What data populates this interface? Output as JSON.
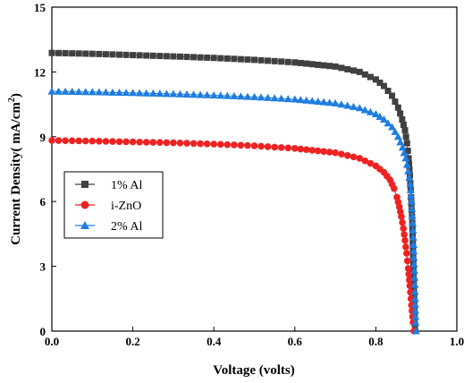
{
  "chart_data": {
    "type": "scatter",
    "xlabel": "Voltage (volts)",
    "ylabel_main": "Current Density( mA/cm",
    "ylabel_sup": "2",
    "ylabel_close": ")",
    "xlim": [
      0,
      1.0
    ],
    "ylim": [
      0,
      15
    ],
    "x_ticks": [
      0.0,
      0.2,
      0.4,
      0.6,
      0.8,
      1.0
    ],
    "x_tick_labels": [
      "0.0",
      "0.2",
      "0.4",
      "0.6",
      "0.8",
      "1.0"
    ],
    "y_ticks": [
      0,
      3,
      6,
      9,
      12,
      15
    ],
    "y_tick_labels": [
      "0",
      "3",
      "6",
      "9",
      "12",
      "15"
    ],
    "grid": false,
    "legend_position": "bottom-left",
    "series": [
      {
        "name": "1% Al",
        "marker": "square",
        "color": "#404040",
        "points": [
          [
            0.0,
            12.88
          ],
          [
            0.1,
            12.84
          ],
          [
            0.2,
            12.78
          ],
          [
            0.3,
            12.72
          ],
          [
            0.4,
            12.65
          ],
          [
            0.5,
            12.56
          ],
          [
            0.6,
            12.44
          ],
          [
            0.7,
            12.25
          ],
          [
            0.76,
            12.0
          ],
          [
            0.8,
            11.65
          ],
          [
            0.82,
            11.35
          ],
          [
            0.84,
            10.9
          ],
          [
            0.855,
            10.35
          ],
          [
            0.865,
            9.8
          ],
          [
            0.872,
            9.3
          ],
          [
            0.877,
            8.7
          ],
          [
            0.881,
            8.0
          ],
          [
            0.884,
            7.2
          ],
          [
            0.887,
            6.2
          ],
          [
            0.89,
            5.0
          ],
          [
            0.892,
            3.6
          ],
          [
            0.894,
            2.0
          ],
          [
            0.896,
            0.6
          ],
          [
            0.897,
            0.0
          ]
        ]
      },
      {
        "name": "i-ZnO",
        "marker": "circle",
        "color": "#ee2222",
        "points": [
          [
            0.0,
            8.83
          ],
          [
            0.1,
            8.8
          ],
          [
            0.2,
            8.76
          ],
          [
            0.3,
            8.72
          ],
          [
            0.4,
            8.66
          ],
          [
            0.5,
            8.58
          ],
          [
            0.6,
            8.46
          ],
          [
            0.7,
            8.26
          ],
          [
            0.76,
            8.0
          ],
          [
            0.8,
            7.65
          ],
          [
            0.82,
            7.35
          ],
          [
            0.835,
            7.0
          ],
          [
            0.845,
            6.6
          ],
          [
            0.852,
            6.2
          ],
          [
            0.858,
            5.75
          ],
          [
            0.863,
            5.3
          ],
          [
            0.868,
            4.75
          ],
          [
            0.872,
            4.2
          ],
          [
            0.876,
            3.6
          ],
          [
            0.88,
            2.9
          ],
          [
            0.884,
            2.1
          ],
          [
            0.888,
            1.2
          ],
          [
            0.892,
            0.4
          ],
          [
            0.894,
            0.0
          ]
        ]
      },
      {
        "name": "2% Al",
        "marker": "triangle",
        "color": "#1f7de0",
        "points": [
          [
            0.0,
            11.1
          ],
          [
            0.1,
            11.07
          ],
          [
            0.2,
            11.03
          ],
          [
            0.3,
            10.98
          ],
          [
            0.4,
            10.92
          ],
          [
            0.5,
            10.84
          ],
          [
            0.6,
            10.73
          ],
          [
            0.7,
            10.55
          ],
          [
            0.76,
            10.33
          ],
          [
            0.8,
            10.05
          ],
          [
            0.82,
            9.8
          ],
          [
            0.84,
            9.45
          ],
          [
            0.855,
            9.0
          ],
          [
            0.866,
            8.5
          ],
          [
            0.874,
            8.0
          ],
          [
            0.88,
            7.4
          ],
          [
            0.885,
            6.8
          ],
          [
            0.888,
            6.0
          ],
          [
            0.891,
            5.0
          ],
          [
            0.893,
            4.0
          ],
          [
            0.895,
            2.8
          ],
          [
            0.897,
            1.5
          ],
          [
            0.898,
            0.4
          ],
          [
            0.899,
            0.0
          ]
        ]
      }
    ]
  }
}
